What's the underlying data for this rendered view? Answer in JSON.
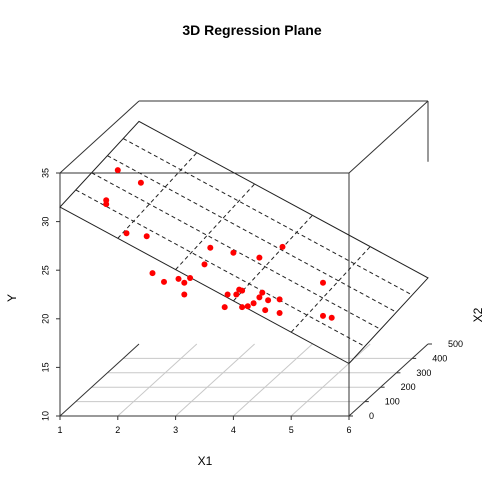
{
  "chart_data": {
    "type": "scatter",
    "title": "3D Regression Plane",
    "xlabel": "X1",
    "ylabel": "Y",
    "zlabel": "X2",
    "xlim": [
      1,
      6
    ],
    "ylim": [
      10,
      35
    ],
    "zlim": [
      0,
      500
    ],
    "x_ticks": [
      "1",
      "2",
      "3",
      "4",
      "5",
      "6"
    ],
    "y_ticks": [
      "10",
      "15",
      "20",
      "25",
      "30",
      "35"
    ],
    "z_ticks": [
      "0",
      "100",
      "200",
      "300",
      "400",
      "500"
    ],
    "grid": true,
    "point_color": "#ff0000",
    "regression_plane": {
      "corners": [
        {
          "x1": 1,
          "x2": 0,
          "y": 31.5
        },
        {
          "x1": 6,
          "x2": 0,
          "y": 15.4
        },
        {
          "x1": 6,
          "x2": 500,
          "y": 16.8
        },
        {
          "x1": 1,
          "x2": 500,
          "y": 32.9
        }
      ]
    },
    "points": [
      {
        "x1": 2.0,
        "x2": 0,
        "y": 35.3
      },
      {
        "x1": 2.4,
        "x2": 0,
        "y": 34.0
      },
      {
        "x1": 1.8,
        "x2": 0,
        "y": 32.2
      },
      {
        "x1": 1.8,
        "x2": 0,
        "y": 31.8
      },
      {
        "x1": 2.15,
        "x2": 0,
        "y": 28.8
      },
      {
        "x1": 2.5,
        "x2": 0,
        "y": 28.5
      },
      {
        "x1": 3.6,
        "x2": 0,
        "y": 27.3
      },
      {
        "x1": 4.0,
        "x2": 0,
        "y": 26.8
      },
      {
        "x1": 4.45,
        "x2": 0,
        "y": 26.3
      },
      {
        "x1": 3.5,
        "x2": 0,
        "y": 25.6
      },
      {
        "x1": 2.6,
        "x2": 0,
        "y": 24.7
      },
      {
        "x1": 2.8,
        "x2": 0,
        "y": 23.8
      },
      {
        "x1": 3.05,
        "x2": 0,
        "y": 24.1
      },
      {
        "x1": 3.25,
        "x2": 0,
        "y": 24.2
      },
      {
        "x1": 3.15,
        "x2": 0,
        "y": 23.7
      },
      {
        "x1": 3.15,
        "x2": 0,
        "y": 22.5
      },
      {
        "x1": 4.1,
        "x2": 0,
        "y": 23.0
      },
      {
        "x1": 4.15,
        "x2": 0,
        "y": 22.9
      },
      {
        "x1": 3.9,
        "x2": 0,
        "y": 22.5
      },
      {
        "x1": 4.05,
        "x2": 0,
        "y": 22.5
      },
      {
        "x1": 4.5,
        "x2": 0,
        "y": 22.7
      },
      {
        "x1": 4.45,
        "x2": 0,
        "y": 22.2
      },
      {
        "x1": 4.6,
        "x2": 0,
        "y": 21.9
      },
      {
        "x1": 4.35,
        "x2": 0,
        "y": 21.6
      },
      {
        "x1": 3.85,
        "x2": 0,
        "y": 21.2
      },
      {
        "x1": 4.15,
        "x2": 0,
        "y": 21.2
      },
      {
        "x1": 4.25,
        "x2": 0,
        "y": 21.3
      },
      {
        "x1": 4.55,
        "x2": 0,
        "y": 20.9
      },
      {
        "x1": 4.8,
        "x2": 0,
        "y": 20.6
      },
      {
        "x1": 4.8,
        "x2": 0,
        "y": 22.0
      },
      {
        "x1": 4.85,
        "x2": 0,
        "y": 27.4
      },
      {
        "x1": 5.55,
        "x2": 0,
        "y": 23.7
      },
      {
        "x1": 5.55,
        "x2": 0,
        "y": 20.3
      },
      {
        "x1": 5.7,
        "x2": 0,
        "y": 20.1
      }
    ]
  }
}
